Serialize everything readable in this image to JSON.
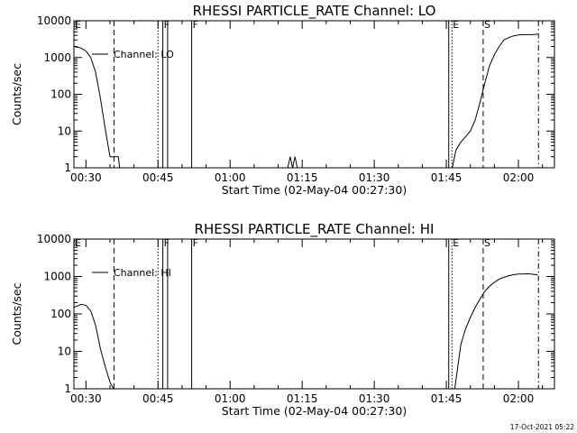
{
  "chart_data": [
    {
      "type": "line",
      "title": "RHESSI PARTICLE_RATE Channel: LO",
      "xlabel": "Start Time (02-May-04 00:27:30)",
      "ylabel": "Counts/sec",
      "yscale": "log",
      "ylim": [
        1,
        10000
      ],
      "xlim": [
        "00:27:30",
        "02:07:30"
      ],
      "yticks": [
        "1",
        "10",
        "100",
        "1000",
        "10000"
      ],
      "xticks": [
        "00:30",
        "00:45",
        "01:00",
        "01:15",
        "01:30",
        "01:45",
        "02:00"
      ],
      "grid": false,
      "legend_position": "top-left",
      "series": [
        {
          "name": "Channel: LO",
          "x": [
            "00:27:30",
            "00:29:00",
            "00:30:00",
            "00:31:00",
            "00:32:00",
            "00:33:00",
            "00:34:00",
            "00:35:00",
            "00:35:30",
            "00:36:30",
            "00:36:45",
            "00:37:00",
            "01:12:00",
            "01:12:30",
            "01:13:00",
            "01:13:30",
            "01:14:00",
            "01:46:15",
            "01:47:00",
            "01:48:00",
            "01:49:00",
            "01:50:00",
            "01:51:00",
            "01:52:00",
            "01:53:00",
            "01:54:00",
            "01:55:00",
            "01:56:00",
            "01:57:00",
            "01:58:00",
            "01:59:00",
            "02:00:00",
            "02:01:00",
            "02:02:00",
            "02:03:00",
            "02:04:00"
          ],
          "y": [
            2000,
            1800,
            1500,
            1000,
            400,
            80,
            12,
            2,
            2,
            2,
            2,
            1,
            1,
            2,
            1,
            2,
            1,
            1,
            3,
            5,
            7,
            10,
            20,
            60,
            200,
            600,
            1200,
            2000,
            3000,
            3500,
            3900,
            4100,
            4200,
            4200,
            4200,
            4300
          ],
          "segments": [
            [
              0,
              11
            ],
            [
              12,
              16
            ],
            [
              17,
              35
            ]
          ]
        }
      ],
      "markers": [
        {
          "label": "E",
          "style": "dotted",
          "x": "00:27:30"
        },
        {
          "label": "",
          "style": "dashed",
          "x": "00:35:50"
        },
        {
          "label": "",
          "style": "dotted",
          "x": "00:45:00"
        },
        {
          "label": "F",
          "style": "solid",
          "x": "00:46:00"
        },
        {
          "label": "",
          "style": "solid",
          "x": "00:47:00"
        },
        {
          "label": "F",
          "style": "solid",
          "x": "00:52:00"
        },
        {
          "label": "",
          "style": "solid",
          "x": "01:45:30"
        },
        {
          "label": "E",
          "style": "dotted",
          "x": "01:46:10"
        },
        {
          "label": "S",
          "style": "dashed",
          "x": "01:52:40"
        },
        {
          "label": "",
          "style": "dashdot",
          "x": "02:04:10"
        }
      ]
    },
    {
      "type": "line",
      "title": "RHESSI PARTICLE_RATE Channel: HI",
      "xlabel": "Start Time (02-May-04 00:27:30)",
      "ylabel": "Counts/sec",
      "yscale": "log",
      "ylim": [
        1,
        10000
      ],
      "xlim": [
        "00:27:30",
        "02:07:30"
      ],
      "yticks": [
        "1",
        "10",
        "100",
        "1000",
        "10000"
      ],
      "xticks": [
        "00:30",
        "00:45",
        "01:00",
        "01:15",
        "01:30",
        "01:45",
        "02:00"
      ],
      "grid": false,
      "legend_position": "top-left",
      "series": [
        {
          "name": "Channel: HI",
          "x": [
            "00:27:30",
            "00:29:00",
            "00:30:00",
            "00:31:00",
            "00:32:00",
            "00:33:00",
            "00:34:00",
            "00:35:00",
            "00:35:45",
            "01:46:45",
            "01:47:30",
            "01:48:00",
            "01:49:00",
            "01:50:00",
            "01:51:00",
            "01:52:00",
            "01:53:00",
            "01:54:00",
            "01:55:00",
            "01:56:00",
            "01:57:00",
            "01:58:00",
            "01:59:00",
            "02:00:00",
            "02:01:00",
            "02:02:00",
            "02:03:00",
            "02:04:00"
          ],
          "y": [
            150,
            180,
            170,
            120,
            50,
            12,
            4,
            1.5,
            1,
            1,
            5,
            15,
            40,
            80,
            150,
            250,
            400,
            550,
            700,
            850,
            950,
            1050,
            1120,
            1170,
            1170,
            1180,
            1150,
            1100
          ],
          "segments": [
            [
              0,
              8
            ],
            [
              9,
              27
            ]
          ]
        }
      ],
      "markers": [
        {
          "label": "E",
          "style": "dotted",
          "x": "00:27:30"
        },
        {
          "label": "",
          "style": "dashed",
          "x": "00:35:50"
        },
        {
          "label": "",
          "style": "dotted",
          "x": "00:45:00"
        },
        {
          "label": "F",
          "style": "solid",
          "x": "00:46:00"
        },
        {
          "label": "",
          "style": "solid",
          "x": "00:47:00"
        },
        {
          "label": "F",
          "style": "solid",
          "x": "00:52:00"
        },
        {
          "label": "",
          "style": "solid",
          "x": "01:45:30"
        },
        {
          "label": "E",
          "style": "dotted",
          "x": "01:46:10"
        },
        {
          "label": "S",
          "style": "dashed",
          "x": "01:52:40"
        },
        {
          "label": "",
          "style": "dashdot",
          "x": "02:04:10"
        }
      ]
    }
  ],
  "footer": {
    "timestamp": "17-Oct-2021 05:22"
  }
}
